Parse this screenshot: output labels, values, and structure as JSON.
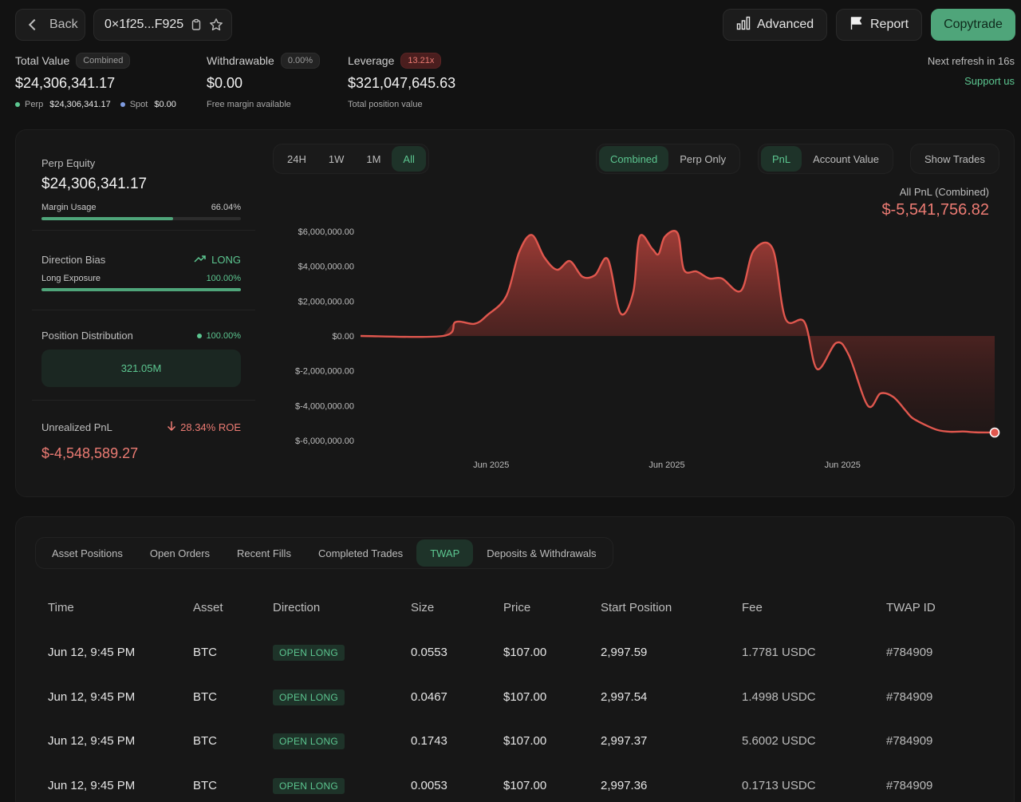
{
  "topbar": {
    "back_label": "Back",
    "address": "0×1f25...F925",
    "advanced_label": "Advanced",
    "report_label": "Report",
    "copytrade_label": "Copytrade"
  },
  "summary": {
    "total_value": {
      "label": "Total Value",
      "pill": "Combined",
      "value": "$24,306,341.17",
      "perp_label": "Perp",
      "perp_value": "$24,306,341.17",
      "spot_label": "Spot",
      "spot_value": "$0.00"
    },
    "withdrawable": {
      "label": "Withdrawable",
      "pill": "0.00%",
      "value": "$0.00",
      "sub": "Free margin available"
    },
    "leverage": {
      "label": "Leverage",
      "pill": "13.21x",
      "value": "$321,047,645.63",
      "sub": "Total position value"
    },
    "refresh_text": "Next refresh in 16s",
    "support_text": "Support us"
  },
  "equity": {
    "perp_equity_label": "Perp Equity",
    "perp_equity_value": "$24,306,341.17",
    "margin_usage_label": "Margin Usage",
    "margin_usage_value": "66.04%",
    "margin_usage_fraction": 0.6604,
    "direction_label": "Direction Bias",
    "direction_value": "LONG",
    "long_exposure_label": "Long Exposure",
    "long_exposure_value": "100.00%",
    "long_exposure_fraction": 1.0,
    "distribution_label": "Position Distribution",
    "distribution_pct": "100.00%",
    "distribution_box": "321.05M",
    "unrealized_label": "Unrealized PnL",
    "roe": "28.34% ROE",
    "unrealized_value": "$-4,548,589.27"
  },
  "chart_controls": {
    "ranges": [
      "24H",
      "1W",
      "1M",
      "All"
    ],
    "active_range": "All",
    "modes": [
      "Combined",
      "Perp Only"
    ],
    "metrics": [
      "PnL",
      "Account Value"
    ],
    "show_trades": "Show Trades"
  },
  "chart_header": {
    "title": "All PnL (Combined)",
    "value": "$-5,541,756.82"
  },
  "colors": {
    "accent_green": "#5cc690",
    "loss_red": "#ec7b73",
    "line_red": "#e0574e"
  },
  "chart_data": {
    "type": "area",
    "title": "All PnL (Combined)",
    "ylim": [
      -6000000,
      6000000
    ],
    "y_ticks": [
      6000000,
      4000000,
      2000000,
      0,
      -2000000,
      -4000000,
      -6000000
    ],
    "y_tick_labels": [
      "$6,000,000.00",
      "$4,000,000.00",
      "$2,000,000.00",
      "$0.00",
      "$-2,000,000.00",
      "$-4,000,000.00",
      "$-6,000,000.00"
    ],
    "x_tick_labels": [
      "Jun 2025",
      "Jun 2025",
      "Jun 2025"
    ],
    "x_tick_positions": [
      0.206,
      0.483,
      0.76
    ],
    "series": [
      {
        "x": [
          0,
          0.13,
          0.15,
          0.18,
          0.2,
          0.23,
          0.25,
          0.27,
          0.29,
          0.31,
          0.33,
          0.35,
          0.37,
          0.39,
          0.41,
          0.43,
          0.44,
          0.46,
          0.47,
          0.48,
          0.5,
          0.51,
          0.53,
          0.55,
          0.57,
          0.6,
          0.62,
          0.65,
          0.67,
          0.7,
          0.72,
          0.75,
          0.77,
          0.8,
          0.82,
          0.84,
          0.86,
          0.87,
          0.89,
          0.91,
          0.93,
          0.95,
          0.97,
          1.0
        ],
        "values": [
          0,
          0,
          800000,
          700000,
          1200000,
          2300000,
          4800000,
          5800000,
          4500000,
          3800000,
          4300000,
          3400000,
          3500000,
          4400000,
          1300000,
          2500000,
          5700000,
          5000000,
          4700000,
          5700000,
          5900000,
          3800000,
          3700000,
          3300000,
          3300000,
          2600000,
          4900000,
          5000000,
          1000000,
          800000,
          -1900000,
          -400000,
          -1100000,
          -4000000,
          -3300000,
          -3500000,
          -4300000,
          -4700000,
          -5100000,
          -5400000,
          -5500000,
          -5480000,
          -5530000,
          -5541756.82
        ]
      }
    ]
  },
  "tabs": [
    "Asset Positions",
    "Open Orders",
    "Recent Fills",
    "Completed Trades",
    "TWAP",
    "Deposits & Withdrawals"
  ],
  "active_tab": "TWAP",
  "table": {
    "headers": [
      "Time",
      "Asset",
      "Direction",
      "Size",
      "Price",
      "Start Position",
      "Fee",
      "TWAP ID"
    ],
    "rows": [
      [
        "Jun 12, 9:45 PM",
        "BTC",
        "OPEN LONG",
        "0.0553",
        "$107.00",
        "2,997.59",
        "1.7781 USDC",
        "#784909"
      ],
      [
        "Jun 12, 9:45 PM",
        "BTC",
        "OPEN LONG",
        "0.0467",
        "$107.00",
        "2,997.54",
        "1.4998 USDC",
        "#784909"
      ],
      [
        "Jun 12, 9:45 PM",
        "BTC",
        "OPEN LONG",
        "0.1743",
        "$107.00",
        "2,997.37",
        "5.6002 USDC",
        "#784909"
      ],
      [
        "Jun 12, 9:45 PM",
        "BTC",
        "OPEN LONG",
        "0.0053",
        "$107.00",
        "2,997.36",
        "0.1713 USDC",
        "#784909"
      ]
    ]
  }
}
